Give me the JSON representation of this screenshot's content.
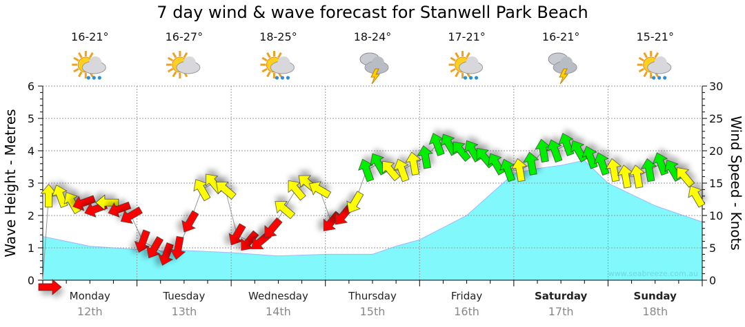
{
  "chart_data": {
    "type": "area",
    "title": "7 day wind & wave forecast for Stanwell Park Beach",
    "ylabel": "Wave Height - Metres",
    "y2label": "Wind Speed - Knots",
    "ylim": [
      0,
      6
    ],
    "y2lim": [
      0,
      30
    ],
    "yticks": [
      "0",
      "1",
      "2",
      "3",
      "4",
      "5",
      "6"
    ],
    "y2ticks": [
      "0",
      "5",
      "10",
      "15",
      "20",
      "25",
      "30"
    ],
    "grid": true,
    "watermark": "www.seabreeze.com.au",
    "days": [
      {
        "day": "Monday",
        "date": "12th",
        "bold": false,
        "temp": "16-21°",
        "icon": "sun-cloud-rain"
      },
      {
        "day": "Tuesday",
        "date": "13th",
        "bold": false,
        "temp": "16-27°",
        "icon": "sun-cloud"
      },
      {
        "day": "Wednesday",
        "date": "14th",
        "bold": false,
        "temp": "18-25°",
        "icon": "sun-cloud-rain"
      },
      {
        "day": "Thursday",
        "date": "15th",
        "bold": false,
        "temp": "18-24°",
        "icon": "cloud-storm"
      },
      {
        "day": "Friday",
        "date": "16th",
        "bold": false,
        "temp": "17-21°",
        "icon": "sun-cloud-rain"
      },
      {
        "day": "Saturday",
        "date": "17th",
        "bold": true,
        "temp": "16-21°",
        "icon": "cloud-storm"
      },
      {
        "day": "Sunday",
        "date": "18th",
        "bold": true,
        "temp": "15-21°",
        "icon": "sun-cloud-rain"
      }
    ],
    "wave_height": {
      "name": "Wave Height (m)",
      "color": "#80f8fc",
      "x_days": [
        0,
        0.5,
        1,
        1.25,
        1.5,
        2,
        2.5,
        3,
        3.5,
        3.75,
        4,
        4.5,
        5,
        5.25,
        5.5,
        5.75,
        6,
        6.5,
        7
      ],
      "values": [
        1.35,
        1.05,
        0.95,
        0.9,
        0.92,
        0.85,
        0.75,
        0.8,
        0.8,
        1.05,
        1.25,
        2.0,
        3.3,
        3.45,
        3.55,
        3.7,
        3.0,
        2.3,
        1.8
      ]
    },
    "wind": {
      "name": "Wind Speed (knots)",
      "colors": {
        "red": "#ff0000",
        "yellow": "#ffff00",
        "green": "#00ee00"
      },
      "points": [
        [
          0,
          0,
          "red"
        ],
        [
          13,
          -90,
          "yellow"
        ],
        [
          13,
          -110,
          "yellow"
        ],
        [
          12,
          -120,
          "yellow"
        ],
        [
          12,
          160,
          "red"
        ],
        [
          11,
          160,
          "red"
        ],
        [
          12,
          180,
          "yellow"
        ],
        [
          11,
          160,
          "red"
        ],
        [
          10,
          150,
          "red"
        ],
        [
          6,
          110,
          "red"
        ],
        [
          5,
          120,
          "red"
        ],
        [
          4,
          110,
          "red"
        ],
        [
          5,
          100,
          "red"
        ],
        [
          9,
          120,
          "red"
        ],
        [
          14,
          -120,
          "yellow"
        ],
        [
          15,
          -130,
          "yellow"
        ],
        [
          14,
          -140,
          "yellow"
        ],
        [
          7,
          120,
          "red"
        ],
        [
          6,
          130,
          "red"
        ],
        [
          6,
          140,
          "red"
        ],
        [
          8,
          130,
          "red"
        ],
        [
          11,
          -140,
          "yellow"
        ],
        [
          14,
          -130,
          "yellow"
        ],
        [
          15,
          -140,
          "yellow"
        ],
        [
          14,
          -150,
          "yellow"
        ],
        [
          9,
          130,
          "red"
        ],
        [
          10,
          130,
          "red"
        ],
        [
          12,
          120,
          "yellow"
        ],
        [
          17,
          -110,
          "green"
        ],
        [
          18,
          -120,
          "green"
        ],
        [
          17,
          -130,
          "yellow"
        ],
        [
          17,
          -110,
          "yellow"
        ],
        [
          18,
          -100,
          "yellow"
        ],
        [
          19,
          -100,
          "green"
        ],
        [
          21,
          -110,
          "green"
        ],
        [
          21,
          -120,
          "green"
        ],
        [
          20,
          -130,
          "green"
        ],
        [
          20,
          -120,
          "green"
        ],
        [
          19,
          -130,
          "green"
        ],
        [
          18,
          -120,
          "green"
        ],
        [
          17,
          -110,
          "green"
        ],
        [
          17,
          -100,
          "yellow"
        ],
        [
          18,
          -100,
          "green"
        ],
        [
          20,
          -100,
          "green"
        ],
        [
          20,
          -110,
          "green"
        ],
        [
          21,
          -110,
          "green"
        ],
        [
          20,
          -120,
          "green"
        ],
        [
          19,
          -110,
          "green"
        ],
        [
          18,
          -110,
          "green"
        ],
        [
          17,
          -100,
          "yellow"
        ],
        [
          16,
          -100,
          "yellow"
        ],
        [
          16,
          -100,
          "yellow"
        ],
        [
          17,
          -100,
          "green"
        ],
        [
          18,
          -110,
          "green"
        ],
        [
          17,
          -120,
          "green"
        ],
        [
          16,
          -130,
          "yellow"
        ],
        [
          13,
          -120,
          "yellow"
        ]
      ]
    }
  }
}
